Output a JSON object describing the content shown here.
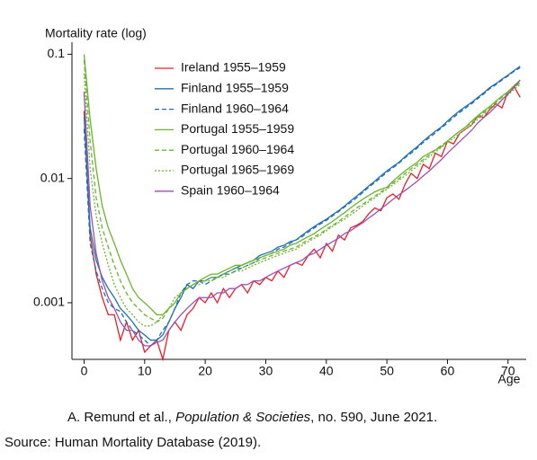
{
  "chart_data": {
    "type": "line",
    "y_label": "Mortality rate (log)",
    "x_label": "Age",
    "x": [
      0,
      1,
      2,
      3,
      4,
      5,
      6,
      7,
      8,
      9,
      10,
      11,
      12,
      13,
      14,
      15,
      16,
      17,
      18,
      19,
      20,
      21,
      22,
      23,
      24,
      25,
      26,
      27,
      28,
      29,
      30,
      31,
      32,
      33,
      34,
      35,
      36,
      37,
      38,
      39,
      40,
      41,
      42,
      43,
      44,
      45,
      46,
      47,
      48,
      49,
      50,
      51,
      52,
      53,
      54,
      55,
      56,
      57,
      58,
      59,
      60,
      61,
      62,
      63,
      64,
      65,
      66,
      67,
      68,
      69,
      70,
      71,
      72
    ],
    "xlim": [
      -2,
      73
    ],
    "xticks": [
      0,
      10,
      20,
      30,
      40,
      50,
      60,
      70
    ],
    "ylim": [
      0.00035,
      0.125
    ],
    "yticks": [
      0.1,
      0.01,
      0.001
    ],
    "ylog": true,
    "grid": false,
    "series": [
      {
        "name": "Ireland 1955–1959",
        "color": "#e8202a",
        "dash": "solid",
        "values": [
          0.035,
          0.0035,
          0.0017,
          0.0011,
          0.0008,
          0.0008,
          0.0005,
          0.0007,
          0.0005,
          0.0006,
          0.0004,
          0.00045,
          0.0005,
          0.00035,
          0.0006,
          0.0007,
          0.0006,
          0.0008,
          0.0009,
          0.0011,
          0.001,
          0.0012,
          0.001,
          0.0013,
          0.0011,
          0.0013,
          0.0014,
          0.0012,
          0.0015,
          0.0014,
          0.0016,
          0.0015,
          0.0018,
          0.0016,
          0.002,
          0.0021,
          0.002,
          0.0024,
          0.0027,
          0.0023,
          0.003,
          0.0026,
          0.0035,
          0.0032,
          0.004,
          0.0042,
          0.0045,
          0.0052,
          0.0058,
          0.0055,
          0.007,
          0.0075,
          0.0068,
          0.009,
          0.011,
          0.01,
          0.013,
          0.012,
          0.016,
          0.015,
          0.02,
          0.019,
          0.023,
          0.025,
          0.027,
          0.032,
          0.031,
          0.036,
          0.04,
          0.037,
          0.05,
          0.055,
          0.045
        ]
      },
      {
        "name": "Finland 1955–1959",
        "color": "#1f6fb4",
        "dash": "solid",
        "values": [
          0.032,
          0.004,
          0.0022,
          0.0016,
          0.0013,
          0.0011,
          0.0009,
          0.0008,
          0.0007,
          0.0006,
          0.00055,
          0.0005,
          0.0005,
          0.00055,
          0.0007,
          0.0009,
          0.0011,
          0.0014,
          0.0013,
          0.0015,
          0.0015,
          0.0016,
          0.0016,
          0.0017,
          0.0018,
          0.0019,
          0.002,
          0.0021,
          0.0022,
          0.0024,
          0.0025,
          0.0026,
          0.0028,
          0.0029,
          0.0031,
          0.0032,
          0.0035,
          0.0038,
          0.0041,
          0.0044,
          0.0047,
          0.0051,
          0.0055,
          0.006,
          0.0066,
          0.0072,
          0.0079,
          0.0087,
          0.0095,
          0.0105,
          0.0115,
          0.0125,
          0.0135,
          0.015,
          0.0165,
          0.018,
          0.02,
          0.022,
          0.024,
          0.026,
          0.029,
          0.032,
          0.035,
          0.038,
          0.041,
          0.045,
          0.049,
          0.054,
          0.058,
          0.063,
          0.068,
          0.074,
          0.08
        ]
      },
      {
        "name": "Finland 1960–1964",
        "color": "#1f6fb4",
        "dash": "dashed",
        "values": [
          0.025,
          0.003,
          0.0018,
          0.0013,
          0.001,
          0.0009,
          0.00085,
          0.0007,
          0.0006,
          0.00055,
          0.0005,
          0.00045,
          0.0005,
          0.0006,
          0.0007,
          0.0009,
          0.0012,
          0.0014,
          0.0015,
          0.0015,
          0.0014,
          0.0015,
          0.0016,
          0.0017,
          0.0017,
          0.0018,
          0.0019,
          0.002,
          0.0021,
          0.0023,
          0.0024,
          0.0025,
          0.0027,
          0.0028,
          0.003,
          0.0032,
          0.0034,
          0.0037,
          0.004,
          0.0043,
          0.0046,
          0.005,
          0.0054,
          0.0059,
          0.0064,
          0.007,
          0.0077,
          0.0085,
          0.0093,
          0.0102,
          0.0112,
          0.0122,
          0.0133,
          0.0147,
          0.016,
          0.0176,
          0.0195,
          0.0213,
          0.0233,
          0.0255,
          0.028,
          0.031,
          0.034,
          0.037,
          0.04,
          0.044,
          0.048,
          0.053,
          0.057,
          0.062,
          0.067,
          0.073,
          0.078
        ]
      },
      {
        "name": "Portugal 1955–1959",
        "color": "#6ab42d",
        "dash": "solid",
        "values": [
          0.1,
          0.03,
          0.012,
          0.006,
          0.004,
          0.003,
          0.0022,
          0.0017,
          0.0013,
          0.0011,
          0.001,
          0.0009,
          0.0008,
          0.0008,
          0.0009,
          0.001,
          0.0012,
          0.0013,
          0.0014,
          0.0015,
          0.0016,
          0.0017,
          0.0017,
          0.0018,
          0.0019,
          0.002,
          0.002,
          0.0021,
          0.0022,
          0.0023,
          0.0024,
          0.0025,
          0.0026,
          0.0027,
          0.0029,
          0.003,
          0.0032,
          0.0034,
          0.0036,
          0.0039,
          0.0042,
          0.0045,
          0.0049,
          0.0053,
          0.0058,
          0.0063,
          0.0068,
          0.0073,
          0.0078,
          0.0082,
          0.0085,
          0.0095,
          0.0105,
          0.0115,
          0.0125,
          0.0135,
          0.015,
          0.016,
          0.017,
          0.018,
          0.02,
          0.022,
          0.024,
          0.026,
          0.029,
          0.032,
          0.035,
          0.038,
          0.042,
          0.046,
          0.05,
          0.056,
          0.062
        ]
      },
      {
        "name": "Portugal 1960–1964",
        "color": "#6ab42d",
        "dash": "dashed",
        "values": [
          0.09,
          0.02,
          0.007,
          0.004,
          0.0028,
          0.002,
          0.0015,
          0.0012,
          0.001,
          0.0009,
          0.0008,
          0.00075,
          0.0007,
          0.00075,
          0.0009,
          0.001,
          0.0012,
          0.0013,
          0.0014,
          0.0015,
          0.0015,
          0.0016,
          0.0016,
          0.0017,
          0.0018,
          0.0019,
          0.0019,
          0.002,
          0.0021,
          0.0022,
          0.0023,
          0.0024,
          0.0025,
          0.0026,
          0.0027,
          0.0028,
          0.003,
          0.0032,
          0.0034,
          0.0036,
          0.0039,
          0.0042,
          0.0045,
          0.0049,
          0.0053,
          0.0058,
          0.0062,
          0.0067,
          0.0072,
          0.0078,
          0.0084,
          0.0092,
          0.01,
          0.011,
          0.012,
          0.013,
          0.0142,
          0.0155,
          0.017,
          0.0185,
          0.02,
          0.022,
          0.024,
          0.026,
          0.028,
          0.031,
          0.034,
          0.037,
          0.041,
          0.045,
          0.049,
          0.054,
          0.059
        ]
      },
      {
        "name": "Portugal 1965–1969",
        "color": "#6ab42d",
        "dash": "dotted",
        "values": [
          0.07,
          0.012,
          0.005,
          0.003,
          0.002,
          0.0014,
          0.0011,
          0.0009,
          0.0008,
          0.0007,
          0.00065,
          0.00065,
          0.0007,
          0.0008,
          0.0009,
          0.0011,
          0.0012,
          0.0013,
          0.0014,
          0.0014,
          0.0015,
          0.0015,
          0.0016,
          0.0016,
          0.0017,
          0.0018,
          0.0018,
          0.0019,
          0.002,
          0.0021,
          0.0022,
          0.0023,
          0.0024,
          0.0025,
          0.0026,
          0.0027,
          0.0029,
          0.0031,
          0.0033,
          0.0035,
          0.0038,
          0.0041,
          0.0044,
          0.0047,
          0.0051,
          0.0055,
          0.006,
          0.0065,
          0.007,
          0.0076,
          0.0082,
          0.0089,
          0.0097,
          0.0105,
          0.0115,
          0.0125,
          0.0137,
          0.015,
          0.0163,
          0.0178,
          0.0195,
          0.021,
          0.023,
          0.025,
          0.027,
          0.03,
          0.033,
          0.036,
          0.039,
          0.043,
          0.047,
          0.052,
          0.057
        ]
      },
      {
        "name": "Spain 1960–1964",
        "color": "#9b4fb0",
        "dash": "solid",
        "values": [
          0.05,
          0.006,
          0.0025,
          0.0015,
          0.0011,
          0.0009,
          0.0007,
          0.0006,
          0.0006,
          0.0005,
          0.00045,
          0.00045,
          0.00048,
          0.0005,
          0.0006,
          0.0007,
          0.0008,
          0.0009,
          0.001,
          0.0011,
          0.0011,
          0.0011,
          0.0012,
          0.0012,
          0.0013,
          0.0013,
          0.0014,
          0.0014,
          0.0015,
          0.0015,
          0.0016,
          0.0017,
          0.0018,
          0.0019,
          0.002,
          0.0021,
          0.0022,
          0.0024,
          0.0025,
          0.0027,
          0.0029,
          0.0031,
          0.0033,
          0.0036,
          0.0038,
          0.0041,
          0.0044,
          0.0048,
          0.0052,
          0.0057,
          0.0062,
          0.0068,
          0.0074,
          0.008,
          0.0087,
          0.0095,
          0.0105,
          0.0115,
          0.0128,
          0.0142,
          0.016,
          0.0178,
          0.0198,
          0.022,
          0.0245,
          0.028,
          0.031,
          0.034,
          0.038,
          0.043,
          0.048,
          0.054,
          0.062
        ]
      }
    ]
  },
  "footer": {
    "citation": [
      {
        "text": "A. Remund et al., ",
        "italic": false
      },
      {
        "text": "Population & Societies",
        "italic": true
      },
      {
        "text": ", no. 590, June 2021.",
        "italic": false
      }
    ],
    "source": "Source: Human Mortality Database (2019)."
  }
}
